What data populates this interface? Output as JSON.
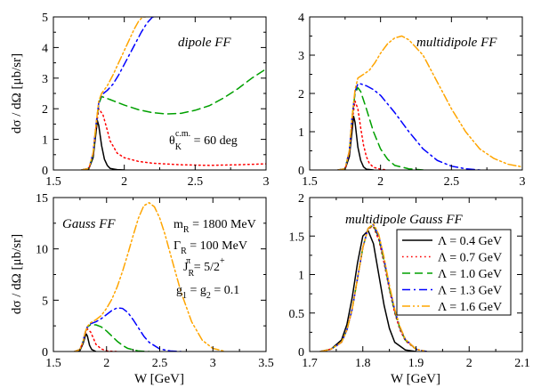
{
  "chart_data": [
    {
      "id": "dipole",
      "type": "line",
      "title": "dipole FF",
      "xlabel": "",
      "ylabel": "dσ / dΩ  [μb/sr]",
      "xlim": [
        1.5,
        3.0
      ],
      "ylim": [
        0,
        5
      ],
      "xticks": [
        "1.5",
        "2",
        "2.5",
        "3"
      ],
      "yticks": [
        "0",
        "1",
        "2",
        "3",
        "4",
        "5"
      ],
      "annotation_main": "θ",
      "annotation_sup": "c.m.",
      "annotation_sub": "K",
      "annotation_rest": " = 60 deg",
      "series": [
        {
          "lambda": 0.4,
          "x": [
            1.7,
            1.75,
            1.78,
            1.8,
            1.81,
            1.82,
            1.84,
            1.86,
            1.88,
            1.9,
            1.95,
            2.0
          ],
          "y": [
            0.0,
            0.04,
            0.4,
            1.2,
            1.62,
            1.45,
            0.8,
            0.35,
            0.15,
            0.05,
            0.01,
            0.0
          ]
        },
        {
          "lambda": 0.7,
          "x": [
            1.7,
            1.75,
            1.78,
            1.8,
            1.82,
            1.85,
            1.88,
            1.9,
            1.95,
            2.0,
            2.1,
            2.2,
            2.4,
            2.6,
            2.8,
            3.0
          ],
          "y": [
            0.0,
            0.05,
            0.5,
            1.35,
            2.0,
            1.8,
            1.3,
            0.95,
            0.55,
            0.4,
            0.28,
            0.22,
            0.17,
            0.15,
            0.17,
            0.2
          ]
        },
        {
          "lambda": 1.0,
          "x": [
            1.7,
            1.75,
            1.78,
            1.8,
            1.82,
            1.84,
            1.9,
            2.0,
            2.1,
            2.2,
            2.3,
            2.4,
            2.5,
            2.6,
            2.7,
            2.8,
            2.9,
            3.0
          ],
          "y": [
            0.0,
            0.05,
            0.5,
            1.4,
            2.15,
            2.4,
            2.3,
            2.12,
            1.97,
            1.87,
            1.83,
            1.85,
            1.95,
            2.1,
            2.35,
            2.65,
            3.0,
            3.3
          ]
        },
        {
          "lambda": 1.3,
          "x": [
            1.7,
            1.75,
            1.78,
            1.8,
            1.82,
            1.84,
            1.88,
            1.92,
            1.96,
            2.0,
            2.04,
            2.08,
            2.12,
            2.16,
            2.2,
            2.22
          ],
          "y": [
            0.0,
            0.05,
            0.55,
            1.45,
            2.2,
            2.45,
            2.6,
            2.8,
            3.1,
            3.45,
            3.8,
            4.15,
            4.5,
            4.8,
            5.0,
            5.0
          ]
        },
        {
          "lambda": 1.6,
          "x": [
            1.7,
            1.75,
            1.78,
            1.8,
            1.82,
            1.84,
            1.88,
            1.92,
            1.96,
            2.0,
            2.04,
            2.07,
            2.1,
            2.13,
            2.15
          ],
          "y": [
            0.0,
            0.05,
            0.55,
            1.45,
            2.25,
            2.5,
            2.75,
            3.1,
            3.5,
            3.9,
            4.3,
            4.6,
            4.85,
            5.0,
            5.0
          ]
        }
      ]
    },
    {
      "id": "multidipole",
      "type": "line",
      "title": "multidipole FF",
      "xlabel": "",
      "ylabel": "",
      "xlim": [
        1.5,
        3.0
      ],
      "ylim": [
        0,
        4
      ],
      "xticks": [
        "1.5",
        "2",
        "2.5",
        "3"
      ],
      "yticks": [
        "0",
        "1",
        "2",
        "3",
        "4"
      ],
      "series": [
        {
          "lambda": 0.4,
          "x": [
            1.7,
            1.75,
            1.78,
            1.8,
            1.81,
            1.82,
            1.84,
            1.86,
            1.88,
            1.9,
            1.95
          ],
          "y": [
            0.0,
            0.02,
            0.35,
            1.05,
            1.4,
            1.25,
            0.6,
            0.25,
            0.08,
            0.02,
            0.0
          ]
        },
        {
          "lambda": 0.7,
          "x": [
            1.7,
            1.75,
            1.78,
            1.8,
            1.82,
            1.84,
            1.86,
            1.88,
            1.9,
            1.92,
            1.95,
            2.0,
            2.05
          ],
          "y": [
            0.0,
            0.03,
            0.45,
            1.3,
            1.8,
            1.6,
            1.1,
            0.65,
            0.35,
            0.18,
            0.07,
            0.02,
            0.0
          ]
        },
        {
          "lambda": 1.0,
          "x": [
            1.7,
            1.75,
            1.78,
            1.8,
            1.82,
            1.84,
            1.86,
            1.9,
            1.95,
            2.0,
            2.05,
            2.1,
            2.2,
            2.3
          ],
          "y": [
            0.0,
            0.03,
            0.5,
            1.4,
            2.0,
            2.15,
            2.05,
            1.6,
            1.0,
            0.55,
            0.28,
            0.12,
            0.03,
            0.0
          ]
        },
        {
          "lambda": 1.3,
          "x": [
            1.7,
            1.75,
            1.78,
            1.8,
            1.82,
            1.84,
            1.86,
            1.9,
            1.95,
            2.0,
            2.1,
            2.2,
            2.3,
            2.4,
            2.5,
            2.6,
            2.7
          ],
          "y": [
            0.0,
            0.03,
            0.5,
            1.4,
            2.05,
            2.25,
            2.25,
            2.2,
            2.1,
            1.95,
            1.5,
            1.0,
            0.55,
            0.25,
            0.1,
            0.03,
            0.0
          ]
        },
        {
          "lambda": 1.6,
          "x": [
            1.7,
            1.75,
            1.78,
            1.8,
            1.82,
            1.84,
            1.88,
            1.92,
            1.96,
            2.0,
            2.05,
            2.1,
            2.15,
            2.2,
            2.3,
            2.4,
            2.5,
            2.6,
            2.7,
            2.8,
            2.9,
            3.0
          ],
          "y": [
            0.0,
            0.03,
            0.5,
            1.4,
            2.1,
            2.4,
            2.5,
            2.6,
            2.8,
            3.05,
            3.3,
            3.45,
            3.5,
            3.4,
            3.0,
            2.3,
            1.6,
            1.0,
            0.55,
            0.3,
            0.15,
            0.08
          ]
        }
      ]
    },
    {
      "id": "gauss",
      "type": "line",
      "title": "Gauss FF",
      "xlabel": "W [GeV]",
      "ylabel": "dσ / dΩ  [μb/sr]",
      "xlim": [
        1.5,
        3.5
      ],
      "ylim": [
        0,
        15
      ],
      "xticks": [
        "1.5",
        "2",
        "2.5",
        "3",
        "3.5"
      ],
      "yticks": [
        "0",
        "5",
        "10",
        "15"
      ],
      "params": [
        {
          "main": "m",
          "sub": "R",
          "sup": "",
          "rest": " = 1800 MeV"
        },
        {
          "main": "Γ",
          "sub": "R",
          "sup": "",
          "rest": " = 100 MeV"
        },
        {
          "main": "J",
          "sub": "R",
          "sup": "π",
          "rest": " = 5/2",
          "sup2": "+"
        },
        {
          "main": "g",
          "sub": "1",
          "sup": "",
          "rest": " = g",
          "sub2": "2",
          "rest2": " = 0.1"
        }
      ],
      "series": [
        {
          "lambda": 0.4,
          "x": [
            1.7,
            1.75,
            1.78,
            1.8,
            1.81,
            1.82,
            1.84,
            1.86,
            1.9
          ],
          "y": [
            0.0,
            0.1,
            0.8,
            1.5,
            1.7,
            1.5,
            0.6,
            0.2,
            0.0
          ]
        },
        {
          "lambda": 0.7,
          "x": [
            1.7,
            1.75,
            1.78,
            1.8,
            1.82,
            1.85,
            1.88,
            1.9,
            1.95,
            2.0,
            2.05,
            2.1
          ],
          "y": [
            0.0,
            0.2,
            1.0,
            1.8,
            2.2,
            1.9,
            1.2,
            0.7,
            0.25,
            0.07,
            0.02,
            0.0
          ]
        },
        {
          "lambda": 1.0,
          "x": [
            1.7,
            1.75,
            1.78,
            1.8,
            1.82,
            1.85,
            1.9,
            1.95,
            2.0,
            2.05,
            2.1,
            2.15,
            2.2,
            2.3,
            2.4
          ],
          "y": [
            0.0,
            0.2,
            1.0,
            1.9,
            2.4,
            2.6,
            2.6,
            2.4,
            2.0,
            1.5,
            1.0,
            0.6,
            0.3,
            0.05,
            0.0
          ]
        },
        {
          "lambda": 1.3,
          "x": [
            1.7,
            1.75,
            1.78,
            1.8,
            1.82,
            1.85,
            1.9,
            1.95,
            2.0,
            2.05,
            2.1,
            2.15,
            2.2,
            2.25,
            2.3,
            2.35,
            2.4,
            2.5,
            2.6,
            2.7
          ],
          "y": [
            0.0,
            0.2,
            1.0,
            1.9,
            2.4,
            2.7,
            2.9,
            3.2,
            3.6,
            4.0,
            4.25,
            4.2,
            3.8,
            3.1,
            2.3,
            1.5,
            0.9,
            0.25,
            0.05,
            0.0
          ]
        },
        {
          "lambda": 1.6,
          "x": [
            1.7,
            1.75,
            1.78,
            1.8,
            1.82,
            1.85,
            1.9,
            1.95,
            2.0,
            2.05,
            2.1,
            2.15,
            2.2,
            2.25,
            2.3,
            2.35,
            2.4,
            2.45,
            2.5,
            2.55,
            2.6,
            2.7,
            2.8,
            2.9,
            3.0,
            3.1
          ],
          "y": [
            0.0,
            0.2,
            1.0,
            1.9,
            2.45,
            2.8,
            3.1,
            3.5,
            4.2,
            5.1,
            6.3,
            7.8,
            9.5,
            11.3,
            13.0,
            14.2,
            14.5,
            14.1,
            13.0,
            11.4,
            9.5,
            5.8,
            2.9,
            1.1,
            0.3,
            0.05
          ]
        }
      ]
    },
    {
      "id": "multidipole-gauss",
      "type": "line",
      "title": "multidipole Gauss FF",
      "xlabel": "W [GeV]",
      "ylabel": "",
      "xlim": [
        1.7,
        2.1
      ],
      "ylim": [
        0,
        2.0
      ],
      "xticks": [
        "1.7",
        "1.8",
        "1.9",
        "2",
        "2.1"
      ],
      "yticks": [
        "0",
        "0.5",
        "1",
        "1.5",
        "2"
      ],
      "series": [
        {
          "lambda": 0.4,
          "x": [
            1.72,
            1.74,
            1.76,
            1.77,
            1.78,
            1.79,
            1.8,
            1.81,
            1.82,
            1.83,
            1.84,
            1.85,
            1.86,
            1.88,
            1.9
          ],
          "y": [
            0.0,
            0.03,
            0.15,
            0.35,
            0.7,
            1.15,
            1.5,
            1.57,
            1.4,
            1.0,
            0.6,
            0.3,
            0.12,
            0.02,
            0.0
          ]
        },
        {
          "lambda": 0.7,
          "x": [
            1.72,
            1.74,
            1.76,
            1.77,
            1.78,
            1.79,
            1.8,
            1.81,
            1.82,
            1.83,
            1.84,
            1.85,
            1.86,
            1.87,
            1.88,
            1.9,
            1.92
          ],
          "y": [
            0.0,
            0.03,
            0.12,
            0.28,
            0.55,
            0.95,
            1.35,
            1.6,
            1.62,
            1.45,
            1.15,
            0.8,
            0.5,
            0.28,
            0.14,
            0.03,
            0.0
          ]
        },
        {
          "lambda": 1.0,
          "x": [
            1.72,
            1.74,
            1.76,
            1.77,
            1.78,
            1.79,
            1.8,
            1.81,
            1.82,
            1.83,
            1.84,
            1.85,
            1.86,
            1.87,
            1.88,
            1.9,
            1.92
          ],
          "y": [
            0.0,
            0.03,
            0.12,
            0.28,
            0.55,
            0.95,
            1.35,
            1.6,
            1.64,
            1.48,
            1.18,
            0.82,
            0.52,
            0.3,
            0.15,
            0.03,
            0.0
          ]
        },
        {
          "lambda": 1.3,
          "x": [
            1.72,
            1.74,
            1.76,
            1.77,
            1.78,
            1.79,
            1.8,
            1.81,
            1.82,
            1.83,
            1.84,
            1.85,
            1.86,
            1.87,
            1.88,
            1.9,
            1.92
          ],
          "y": [
            0.0,
            0.03,
            0.12,
            0.28,
            0.55,
            0.95,
            1.35,
            1.6,
            1.65,
            1.5,
            1.2,
            0.84,
            0.54,
            0.31,
            0.16,
            0.03,
            0.0
          ]
        },
        {
          "lambda": 1.6,
          "x": [
            1.72,
            1.74,
            1.76,
            1.77,
            1.78,
            1.79,
            1.8,
            1.81,
            1.82,
            1.83,
            1.84,
            1.85,
            1.86,
            1.87,
            1.88,
            1.9,
            1.92
          ],
          "y": [
            0.0,
            0.03,
            0.12,
            0.28,
            0.55,
            0.95,
            1.35,
            1.6,
            1.66,
            1.52,
            1.22,
            0.86,
            0.55,
            0.32,
            0.16,
            0.03,
            0.0
          ]
        }
      ],
      "legend": {
        "placement": "top-right",
        "entries": [
          {
            "label": "Λ = 0.4 GeV",
            "color": "#000000",
            "dash": "solid"
          },
          {
            "label": "Λ = 0.7 GeV",
            "color": "#ff0000",
            "dash": "dotted"
          },
          {
            "label": "Λ = 1.0 GeV",
            "color": "#00a000",
            "dash": "dashed"
          },
          {
            "label": "Λ = 1.3 GeV",
            "color": "#0000ff",
            "dash": "dashdot"
          },
          {
            "label": "Λ = 1.6 GeV",
            "color": "#ffa500",
            "dash": "dashdotdot"
          }
        ]
      }
    }
  ],
  "series_styles": [
    {
      "color": "#000000",
      "dash": "solid"
    },
    {
      "color": "#ff0000",
      "dash": "dotted"
    },
    {
      "color": "#00a000",
      "dash": "dashed"
    },
    {
      "color": "#0000ff",
      "dash": "dashdot"
    },
    {
      "color": "#ffa500",
      "dash": "dashdotdot"
    }
  ]
}
